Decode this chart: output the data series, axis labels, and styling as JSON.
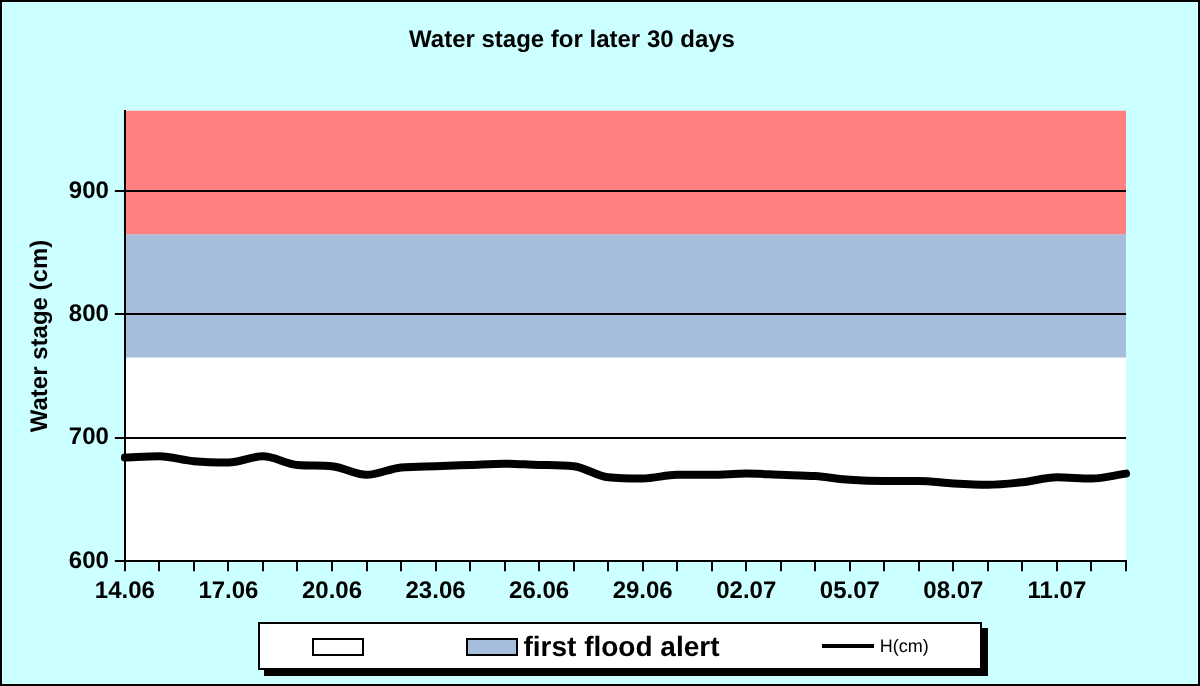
{
  "chart_data": {
    "type": "line",
    "title": "Water stage for later 30 days",
    "ylabel": "Water stage (cm)",
    "categories": [
      "14.06",
      null,
      null,
      "17.06",
      null,
      null,
      "20.06",
      null,
      null,
      "23.06",
      null,
      null,
      "26.06",
      null,
      null,
      "29.06",
      null,
      null,
      "02.07",
      null,
      null,
      "05.07",
      null,
      null,
      "08.07",
      null,
      null,
      "11.07",
      null,
      null
    ],
    "series": [
      {
        "name": "H(cm)",
        "color": "#000000",
        "values": [
          684,
          685,
          681,
          680,
          685,
          678,
          677,
          670,
          676,
          677,
          678,
          679,
          678,
          677,
          668,
          667,
          670,
          670,
          671,
          670,
          669,
          666,
          665,
          665,
          663,
          662,
          664,
          668,
          667,
          671
        ]
      }
    ],
    "ylim": [
      600,
      965
    ],
    "yticks": [
      600,
      700,
      800,
      900
    ],
    "grid": "y",
    "legend": "bottom",
    "marker": "none",
    "line_style": "solid",
    "bands": [
      {
        "axis": "y",
        "from": 765,
        "to": 865,
        "label": "first flood alert",
        "color": "#a6bddb"
      },
      {
        "axis": "y",
        "from": 865,
        "to": 965,
        "color": "#ff8080"
      }
    ]
  }
}
